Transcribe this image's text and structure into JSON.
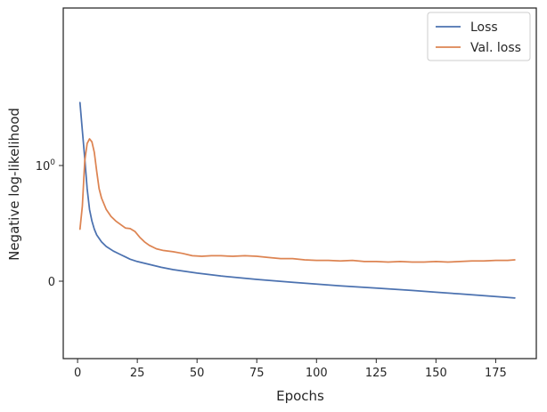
{
  "chart_data": {
    "type": "line",
    "xlabel": "Epochs",
    "ylabel": "Negative log-likelihood",
    "xlim": [
      -6,
      192
    ],
    "yscale": "symlog",
    "x_ticks": [
      0,
      25,
      50,
      75,
      100,
      125,
      150,
      175
    ],
    "y_ticks": [
      {
        "value": 0,
        "label": "0"
      },
      {
        "value": 1,
        "label": "10",
        "sup": "0"
      }
    ],
    "grid": false,
    "legend": "top-right",
    "series": [
      {
        "name": "Loss",
        "color": "#4c72b0",
        "points": [
          [
            1,
            3.5
          ],
          [
            2,
            2.0
          ],
          [
            3,
            1.15
          ],
          [
            4,
            0.8
          ],
          [
            5,
            0.62
          ],
          [
            6,
            0.52
          ],
          [
            7,
            0.45
          ],
          [
            8,
            0.4
          ],
          [
            10,
            0.34
          ],
          [
            12,
            0.3
          ],
          [
            15,
            0.26
          ],
          [
            18,
            0.23
          ],
          [
            20,
            0.21
          ],
          [
            22,
            0.19
          ],
          [
            25,
            0.17
          ],
          [
            30,
            0.145
          ],
          [
            35,
            0.12
          ],
          [
            40,
            0.1
          ],
          [
            50,
            0.07
          ],
          [
            60,
            0.045
          ],
          [
            75,
            0.015
          ],
          [
            90,
            -0.01
          ],
          [
            100,
            -0.025
          ],
          [
            110,
            -0.04
          ],
          [
            125,
            -0.06
          ],
          [
            140,
            -0.08
          ],
          [
            150,
            -0.095
          ],
          [
            160,
            -0.11
          ],
          [
            170,
            -0.125
          ],
          [
            180,
            -0.14
          ],
          [
            183,
            -0.145
          ]
        ]
      },
      {
        "name": "Val. loss",
        "color": "#dd8452",
        "points": [
          [
            1,
            0.45
          ],
          [
            2,
            0.65
          ],
          [
            3,
            1.1
          ],
          [
            4,
            1.55
          ],
          [
            5,
            1.7
          ],
          [
            6,
            1.6
          ],
          [
            7,
            1.3
          ],
          [
            8,
            0.95
          ],
          [
            9,
            0.8
          ],
          [
            10,
            0.72
          ],
          [
            12,
            0.62
          ],
          [
            14,
            0.56
          ],
          [
            16,
            0.52
          ],
          [
            18,
            0.49
          ],
          [
            20,
            0.46
          ],
          [
            22,
            0.455
          ],
          [
            24,
            0.43
          ],
          [
            26,
            0.38
          ],
          [
            28,
            0.34
          ],
          [
            30,
            0.31
          ],
          [
            33,
            0.28
          ],
          [
            36,
            0.265
          ],
          [
            40,
            0.255
          ],
          [
            44,
            0.24
          ],
          [
            48,
            0.22
          ],
          [
            52,
            0.215
          ],
          [
            56,
            0.22
          ],
          [
            60,
            0.22
          ],
          [
            65,
            0.215
          ],
          [
            70,
            0.22
          ],
          [
            75,
            0.215
          ],
          [
            80,
            0.205
          ],
          [
            85,
            0.195
          ],
          [
            90,
            0.195
          ],
          [
            95,
            0.185
          ],
          [
            100,
            0.18
          ],
          [
            105,
            0.18
          ],
          [
            110,
            0.175
          ],
          [
            115,
            0.18
          ],
          [
            120,
            0.17
          ],
          [
            125,
            0.17
          ],
          [
            130,
            0.165
          ],
          [
            135,
            0.17
          ],
          [
            140,
            0.165
          ],
          [
            145,
            0.165
          ],
          [
            150,
            0.17
          ],
          [
            155,
            0.165
          ],
          [
            160,
            0.17
          ],
          [
            165,
            0.175
          ],
          [
            170,
            0.175
          ],
          [
            175,
            0.18
          ],
          [
            180,
            0.18
          ],
          [
            183,
            0.185
          ]
        ]
      }
    ]
  }
}
